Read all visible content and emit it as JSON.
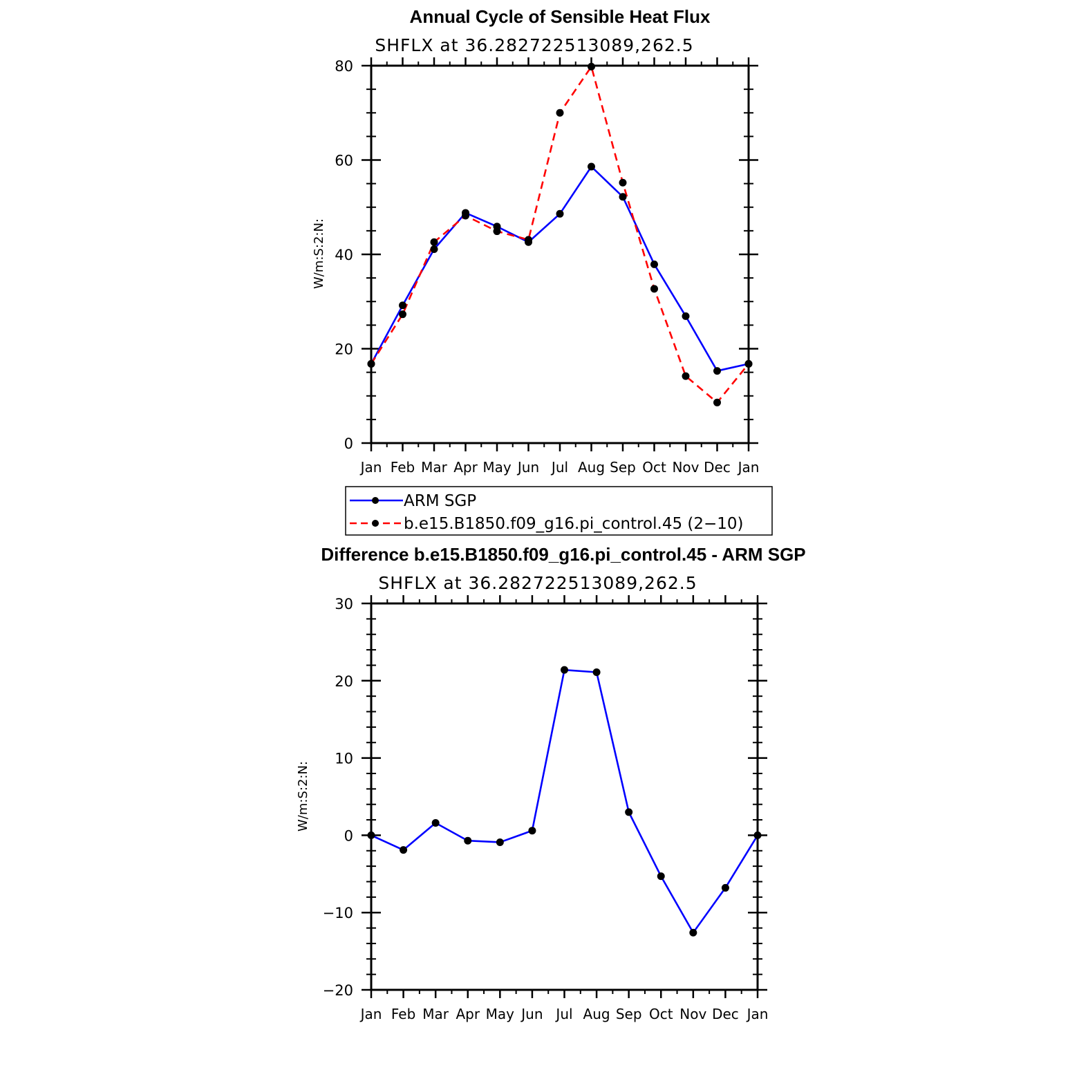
{
  "chart_data": [
    {
      "type": "line",
      "title": "Annual Cycle of Sensible Heat Flux",
      "subtitle": "SHFLX at 36.282722513089,262.5",
      "ylabel": "W/m:S:2:N:",
      "xlabel": "",
      "categories": [
        "Jan",
        "Feb",
        "Mar",
        "Apr",
        "May",
        "Jun",
        "Jul",
        "Aug",
        "Sep",
        "Oct",
        "Nov",
        "Dec",
        "Jan"
      ],
      "ylim": [
        0,
        80
      ],
      "yticks": [
        0,
        20,
        40,
        60,
        80
      ],
      "series": [
        {
          "name": "ARM SGP",
          "color": "#0000ff",
          "dash": "solid",
          "values": [
            16.8,
            29.2,
            41.1,
            48.8,
            45.9,
            42.6,
            48.6,
            58.6,
            52.2,
            37.9,
            26.9,
            15.3,
            16.8
          ]
        },
        {
          "name": "b.e15.B1850.f09_g16.pi_control.45 (2−10)",
          "color": "#ff0000",
          "dash": "dashed",
          "values": [
            16.8,
            27.3,
            42.6,
            48.2,
            44.9,
            43.1,
            70.0,
            79.8,
            55.2,
            32.7,
            14.2,
            8.6,
            16.8
          ]
        }
      ]
    },
    {
      "type": "line",
      "title": "Difference b.e15.B1850.f09_g16.pi_control.45 - ARM SGP",
      "subtitle": "SHFLX at 36.282722513089,262.5",
      "ylabel": "W/m:S:2:N:",
      "xlabel": "",
      "categories": [
        "Jan",
        "Feb",
        "Mar",
        "Apr",
        "May",
        "Jun",
        "Jul",
        "Aug",
        "Sep",
        "Oct",
        "Nov",
        "Dec",
        "Jan"
      ],
      "ylim": [
        -20,
        30
      ],
      "yticks": [
        -20,
        -10,
        0,
        10,
        20,
        30
      ],
      "ytick_labels": [
        "−20",
        "−10",
        "0",
        "10",
        "20",
        "30"
      ],
      "series": [
        {
          "name": "Difference",
          "color": "#0000ff",
          "dash": "solid",
          "values": [
            0,
            -1.9,
            1.6,
            -0.7,
            -0.9,
            0.6,
            21.4,
            21.1,
            3.0,
            -5.3,
            -12.6,
            -6.8,
            0
          ]
        }
      ]
    }
  ],
  "legend": {
    "entries": [
      "ARM SGP",
      "b.e15.B1850.f09_g16.pi_control.45 (2−10)"
    ]
  },
  "colors": {
    "marker": "#000000",
    "frame": "#000000"
  }
}
